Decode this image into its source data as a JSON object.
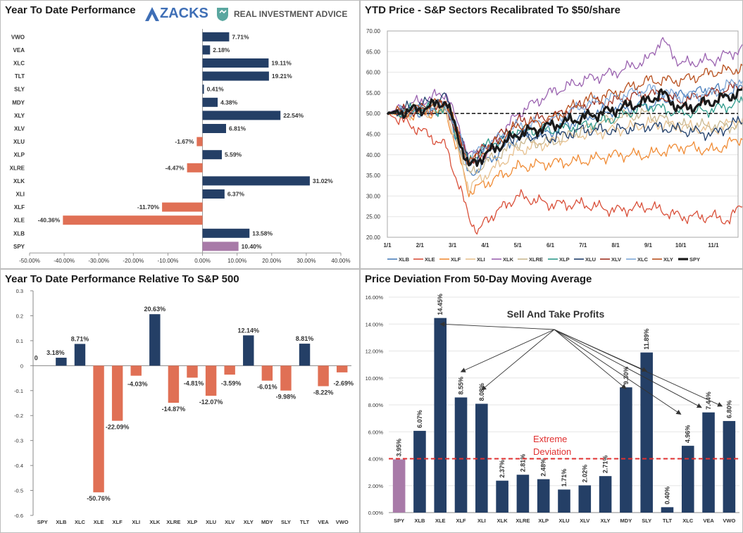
{
  "panels": {
    "p1": {
      "title": "Year To Date Performance",
      "logo_zacks": "ZACKS",
      "logo_ria": "REAL INVESTMENT ADVICE"
    },
    "p2": {
      "title": "YTD Price - S&P Sectors Recalibrated To $50/share"
    },
    "p3": {
      "title": "Year To Date Performance Relative To S&P 500"
    },
    "p4": {
      "title": "Price Deviation From 50-Day Moving Average",
      "annot_sell": "Sell And Take Profits",
      "annot_extreme_1": "Extreme",
      "annot_extreme_2": "Deviation"
    }
  },
  "colors": {
    "navy": "#243f66",
    "coral": "#e07055",
    "purple": "#a87aa8",
    "red_dash": "#e03030"
  },
  "chart_data": [
    {
      "id": "ytd",
      "type": "bar",
      "orientation": "horizontal",
      "title": "Year To Date Performance",
      "categories": [
        "VWO",
        "VEA",
        "XLC",
        "TLT",
        "SLY",
        "MDY",
        "XLY",
        "XLV",
        "XLU",
        "XLP",
        "XLRE",
        "XLK",
        "XLI",
        "XLF",
        "XLE",
        "XLB",
        "SPY"
      ],
      "values": [
        7.71,
        2.18,
        19.11,
        19.21,
        0.41,
        4.38,
        22.54,
        6.81,
        -1.67,
        5.59,
        -4.47,
        31.02,
        6.37,
        -11.7,
        -40.36,
        13.58,
        10.4
      ],
      "labels": [
        "7.71%",
        "2.18%",
        "19.11%",
        "19.21%",
        "0.41%",
        "4.38%",
        "22.54%",
        "6.81%",
        "-1.67%",
        "5.59%",
        "-4.47%",
        "31.02%",
        "6.37%",
        "-11.70%",
        "-40.36%",
        "13.58%",
        "10.40%"
      ],
      "xlim": [
        -50,
        40
      ],
      "xticks": [
        -50,
        -40,
        -30,
        -20,
        -10,
        0,
        10,
        20,
        30,
        40
      ],
      "xtick_labels": [
        "-50.00%",
        "-40.00%",
        "-30.00%",
        "-20.00%",
        "-10.00%",
        "0.00%",
        "10.00%",
        "20.00%",
        "30.00%",
        "40.00%"
      ]
    },
    {
      "id": "price",
      "type": "line",
      "title": "YTD Price - S&P Sectors Recalibrated To $50/share",
      "x_tick_labels": [
        "1/1",
        "2/1",
        "3/1",
        "4/1",
        "5/1",
        "6/1",
        "7/1",
        "8/1",
        "9/1",
        "10/1",
        "11/1"
      ],
      "ylim": [
        20,
        70
      ],
      "yticks": [
        20,
        25,
        30,
        35,
        40,
        45,
        50,
        55,
        60,
        65,
        70
      ],
      "ytick_labels": [
        "20.00",
        "25.00",
        "30.00",
        "35.00",
        "40.00",
        "45.00",
        "50.00",
        "55.00",
        "60.00",
        "65.00",
        "70.00"
      ],
      "reference_line": 50,
      "series": [
        {
          "name": "XLB",
          "color": "#4a7ebb",
          "key": [
            [
              0,
              50
            ],
            [
              1,
              50.5
            ],
            [
              1.8,
              51.5
            ],
            [
              2.5,
              35
            ],
            [
              3,
              38
            ],
            [
              4,
              44
            ],
            [
              5,
              45.5
            ],
            [
              6,
              49
            ],
            [
              7,
              51
            ],
            [
              8,
              52
            ],
            [
              9,
              54.5
            ],
            [
              10,
              56
            ],
            [
              10.5,
              55
            ],
            [
              11,
              56.8
            ]
          ]
        },
        {
          "name": "XLE",
          "color": "#d9503a",
          "key": [
            [
              0,
              50
            ],
            [
              1,
              46
            ],
            [
              1.8,
              42
            ],
            [
              2.5,
              25
            ],
            [
              2.8,
              21
            ],
            [
              3,
              24
            ],
            [
              4,
              30
            ],
            [
              5,
              28
            ],
            [
              6,
              28
            ],
            [
              7,
              26.5
            ],
            [
              8,
              27.5
            ],
            [
              9,
              25
            ],
            [
              10,
              25
            ],
            [
              10.5,
              24
            ],
            [
              11,
              30
            ]
          ]
        },
        {
          "name": "XLF",
          "color": "#f08c36",
          "key": [
            [
              0,
              50
            ],
            [
              1,
              50
            ],
            [
              1.8,
              50.5
            ],
            [
              2.5,
              31
            ],
            [
              3,
              33
            ],
            [
              4,
              37
            ],
            [
              5,
              38
            ],
            [
              6,
              38.5
            ],
            [
              7,
              40
            ],
            [
              8,
              40
            ],
            [
              9,
              42
            ],
            [
              10,
              41
            ],
            [
              11,
              44.5
            ]
          ]
        },
        {
          "name": "XLI",
          "color": "#e7c18f",
          "key": [
            [
              0,
              50
            ],
            [
              1,
              50
            ],
            [
              1.8,
              51
            ],
            [
              2.5,
              32
            ],
            [
              3,
              35
            ],
            [
              4,
              41
            ],
            [
              5,
              43
            ],
            [
              6,
              45
            ],
            [
              7,
              46
            ],
            [
              8,
              47.5
            ],
            [
              9,
              47
            ],
            [
              10,
              46
            ],
            [
              11,
              49
            ]
          ]
        },
        {
          "name": "XLK",
          "color": "#9b63b0",
          "key": [
            [
              0,
              50
            ],
            [
              1,
              53
            ],
            [
              1.8,
              55
            ],
            [
              2.5,
              40
            ],
            [
              3,
              40
            ],
            [
              4,
              50
            ],
            [
              5,
              55
            ],
            [
              6,
              58
            ],
            [
              7,
              60
            ],
            [
              8,
              63
            ],
            [
              8.4,
              68
            ],
            [
              9,
              62
            ],
            [
              10,
              63
            ],
            [
              11,
              66
            ]
          ]
        },
        {
          "name": "XLRE",
          "color": "#c9b890",
          "key": [
            [
              0,
              50
            ],
            [
              1,
              51
            ],
            [
              1.8,
              52
            ],
            [
              2.5,
              35
            ],
            [
              3,
              38
            ],
            [
              4,
              43
            ],
            [
              5,
              43
            ],
            [
              6,
              46
            ],
            [
              7,
              49
            ],
            [
              8,
              50
            ],
            [
              9,
              47
            ],
            [
              10,
              47
            ],
            [
              11,
              47
            ]
          ]
        },
        {
          "name": "XLP",
          "color": "#2e9a8a",
          "key": [
            [
              0,
              50
            ],
            [
              1,
              51
            ],
            [
              1.8,
              51
            ],
            [
              2.5,
              38
            ],
            [
              3,
              42
            ],
            [
              4,
              46
            ],
            [
              5,
              46
            ],
            [
              6,
              47
            ],
            [
              7,
              49
            ],
            [
              8,
              52
            ],
            [
              9,
              50
            ],
            [
              10,
              51
            ],
            [
              11,
              53
            ]
          ]
        },
        {
          "name": "XLU",
          "color": "#1f3e6b",
          "key": [
            [
              0,
              50
            ],
            [
              1,
              52
            ],
            [
              1.8,
              54
            ],
            [
              2.5,
              38
            ],
            [
              3,
              41
            ],
            [
              4,
              45
            ],
            [
              5,
              44
            ],
            [
              6,
              46
            ],
            [
              7,
              46
            ],
            [
              8,
              47
            ],
            [
              9,
              46
            ],
            [
              10,
              45
            ],
            [
              11,
              49
            ]
          ]
        },
        {
          "name": "XLV",
          "color": "#9e3020",
          "key": [
            [
              0,
              50
            ],
            [
              1,
              51
            ],
            [
              1.8,
              52
            ],
            [
              2.5,
              38
            ],
            [
              3,
              42
            ],
            [
              4,
              48
            ],
            [
              5,
              49
            ],
            [
              6,
              52
            ],
            [
              7,
              53
            ],
            [
              8,
              55
            ],
            [
              9,
              53
            ],
            [
              10,
              55
            ],
            [
              11,
              57
            ]
          ]
        },
        {
          "name": "XLC",
          "color": "#7fa8d8",
          "key": [
            [
              0,
              50
            ],
            [
              1,
              51
            ],
            [
              1.8,
              52
            ],
            [
              2.5,
              39
            ],
            [
              3,
              42
            ],
            [
              4,
              47
            ],
            [
              5,
              48
            ],
            [
              6,
              52
            ],
            [
              7,
              54
            ],
            [
              8,
              56
            ],
            [
              9,
              54
            ],
            [
              10,
              55
            ],
            [
              11,
              59
            ]
          ]
        },
        {
          "name": "XLY",
          "color": "#b8501e",
          "key": [
            [
              0,
              50
            ],
            [
              1,
              51
            ],
            [
              1.8,
              53
            ],
            [
              2.5,
              38
            ],
            [
              3,
              41
            ],
            [
              4,
              47
            ],
            [
              5,
              48.5
            ],
            [
              6,
              53
            ],
            [
              7,
              55
            ],
            [
              8,
              58
            ],
            [
              9,
              58
            ],
            [
              10,
              60
            ],
            [
              11,
              61
            ]
          ]
        },
        {
          "name": "SPY",
          "color": "#1a1a1a",
          "key": [
            [
              0,
              50
            ],
            [
              1,
              51
            ],
            [
              1.8,
              53
            ],
            [
              2.5,
              37
            ],
            [
              3,
              40
            ],
            [
              4,
              45
            ],
            [
              5,
              47
            ],
            [
              6,
              49
            ],
            [
              7,
              51
            ],
            [
              8,
              53
            ],
            [
              8.4,
              55
            ],
            [
              9,
              51
            ],
            [
              10,
              53
            ],
            [
              11,
              55.5
            ]
          ]
        }
      ]
    },
    {
      "id": "relative",
      "type": "bar",
      "title": "Year To Date Performance Relative To S&P 500",
      "categories": [
        "SPY",
        "XLB",
        "XLC",
        "XLE",
        "XLF",
        "XLI",
        "XLK",
        "XLRE",
        "XLP",
        "XLU",
        "XLV",
        "XLY",
        "MDY",
        "SLY",
        "TLT",
        "VEA",
        "VWO"
      ],
      "values": [
        0,
        0.0318,
        0.0871,
        -0.5076,
        -0.2209,
        -0.0403,
        0.2063,
        -0.1487,
        -0.0481,
        -0.1207,
        -0.0359,
        0.1214,
        -0.0601,
        -0.0998,
        0.0881,
        -0.0822,
        -0.0269
      ],
      "labels": [
        "0",
        "3.18%",
        "8.71%",
        "-50.76%",
        "-22.09%",
        "-4.03%",
        "20.63%",
        "-14.87%",
        "-4.81%",
        "-12.07%",
        "-3.59%",
        "12.14%",
        "-6.01%",
        "-9.98%",
        "8.81%",
        "-8.22%",
        "-2.69%"
      ],
      "ylim": [
        -0.6,
        0.3
      ],
      "yticks": [
        0.3,
        0.2,
        0.1,
        0,
        -0.1,
        -0.2,
        -0.3,
        -0.4,
        -0.5,
        -0.6
      ],
      "ytick_labels": [
        "0.3",
        "0.2",
        "0.1",
        "0",
        "-0.1",
        "-0.2",
        "-0.3",
        "-0.4",
        "-0.5",
        "-0.6"
      ]
    },
    {
      "id": "deviation",
      "type": "bar",
      "title": "Price Deviation From 50-Day Moving Average",
      "categories": [
        "SPY",
        "XLB",
        "XLE",
        "XLF",
        "XLI",
        "XLK",
        "XLRE",
        "XLP",
        "XLU",
        "XLV",
        "XLY",
        "MDY",
        "SLY",
        "TLT",
        "XLC",
        "VEA",
        "VWO"
      ],
      "values": [
        3.95,
        6.07,
        14.45,
        8.55,
        8.08,
        2.37,
        2.81,
        2.48,
        1.71,
        2.02,
        2.71,
        9.3,
        11.89,
        0.4,
        4.96,
        7.44,
        6.8
      ],
      "labels": [
        "3.95%",
        "6.07%",
        "14.45%",
        "8.55%",
        "8.08%",
        "2.37%",
        "2.81%",
        "2.48%",
        "1.71%",
        "2.02%",
        "2.71%",
        "9.30%",
        "11.89%",
        "0.40%",
        "4.96%",
        "7.44%",
        "6.80%"
      ],
      "ylim": [
        0,
        16
      ],
      "yticks": [
        0,
        2,
        4,
        6,
        8,
        10,
        12,
        14,
        16
      ],
      "ytick_labels": [
        "0.00%",
        "2.00%",
        "4.00%",
        "6.00%",
        "8.00%",
        "10.00%",
        "12.00%",
        "14.00%",
        "16.00%"
      ],
      "threshold": 4.0
    }
  ]
}
